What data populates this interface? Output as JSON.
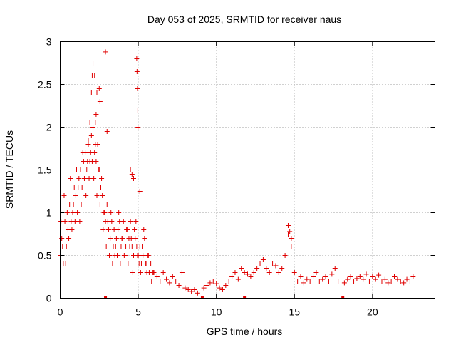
{
  "chart_data": {
    "type": "scatter",
    "title": "Day 053 of 2025, SRMTID for receiver naus",
    "xlabel": "GPS time / hours",
    "ylabel": "SRMTID / TECUs",
    "xlim": [
      0,
      24
    ],
    "ylim": [
      0,
      3
    ],
    "xticks": [
      0,
      5,
      10,
      15,
      20
    ],
    "xtick_labels": [
      "0",
      "5",
      "10",
      "15",
      "20"
    ],
    "yticks": [
      0,
      0.5,
      1,
      1.5,
      2,
      2.5,
      3
    ],
    "ytick_labels": [
      "0",
      "0.5",
      "1",
      "1.5",
      "2",
      "2.5",
      "3"
    ],
    "grid": true,
    "marker": "plus",
    "color": "#e00000",
    "series": [
      {
        "name": "SRMTID",
        "x": [
          0.0,
          0.1,
          0.2,
          0.3,
          0.4,
          0.5,
          0.6,
          0.7,
          0.8,
          0.9,
          1.0,
          1.1,
          1.2,
          1.3,
          1.4,
          1.5,
          1.6,
          1.7,
          1.8,
          1.9,
          2.0,
          2.1,
          2.2,
          2.3,
          2.4,
          2.5,
          2.6,
          2.7,
          2.8,
          2.9,
          3.0,
          3.1,
          3.2,
          3.3,
          3.4,
          3.5,
          3.6,
          3.7,
          3.8,
          3.9,
          4.0,
          4.1,
          4.2,
          4.3,
          4.4,
          4.5,
          4.6,
          4.7,
          4.8,
          4.9,
          5.0,
          5.1,
          5.2,
          5.3,
          5.4,
          5.5,
          5.6,
          5.7,
          5.8,
          5.9,
          6.0,
          6.2,
          6.4,
          6.6,
          6.8,
          7.0,
          7.2,
          7.4,
          7.6,
          7.8,
          8.0,
          8.2,
          8.4,
          8.6,
          8.8,
          9.2,
          9.4,
          9.6,
          9.8,
          10.0,
          10.2,
          10.4,
          10.6,
          10.8,
          11.0,
          11.2,
          11.4,
          11.6,
          11.8,
          12.0,
          12.2,
          12.4,
          12.6,
          12.8,
          13.0,
          13.2,
          13.4,
          13.6,
          13.8,
          14.0,
          14.2,
          14.4,
          14.6,
          14.8,
          15.0,
          15.2,
          15.4,
          15.6,
          15.8,
          16.0,
          16.2,
          16.4,
          16.6,
          16.8,
          17.0,
          17.2,
          17.4,
          17.6,
          17.8,
          18.2,
          18.4,
          18.6,
          18.8,
          19.0,
          19.2,
          19.4,
          19.6,
          19.8,
          20.0,
          20.2,
          20.4,
          20.6,
          20.8,
          21.0,
          21.2,
          21.4,
          21.6,
          21.8,
          22.0,
          22.2,
          22.4,
          22.6,
          0.05,
          0.15,
          0.25,
          0.35,
          0.45,
          0.55,
          0.65,
          0.75,
          0.85,
          0.95,
          1.05,
          1.15,
          1.25,
          1.35,
          1.45,
          1.55,
          1.65,
          1.75,
          1.85,
          1.95,
          2.05,
          2.15,
          2.25,
          2.35,
          2.45,
          2.55,
          2.65,
          2.75,
          2.85,
          2.95,
          3.05,
          3.15,
          3.25,
          3.35,
          3.45,
          3.55,
          3.65,
          3.75,
          3.85,
          3.95,
          4.05,
          4.15,
          4.25,
          4.35,
          4.45,
          4.55,
          4.65,
          4.75,
          4.85,
          4.95,
          5.05,
          5.15,
          5.25,
          5.35,
          5.45,
          5.55,
          5.65,
          5.75,
          5.85,
          5.95,
          2.0,
          2.05,
          2.1,
          2.25,
          2.35,
          2.5,
          2.55,
          4.9,
          4.92,
          4.95,
          4.97,
          4.98,
          14.6,
          14.7,
          14.8,
          2.9,
          1.8,
          1.9,
          2.2,
          2.3,
          3.0,
          4.5,
          4.6,
          4.7,
          5.1
        ],
        "y": [
          0.5,
          0.7,
          0.4,
          0.9,
          0.6,
          0.8,
          1.1,
          0.9,
          1.0,
          1.3,
          1.2,
          1.0,
          1.4,
          1.5,
          1.3,
          1.6,
          1.7,
          1.5,
          1.8,
          1.6,
          1.9,
          2.0,
          1.7,
          1.6,
          1.8,
          1.5,
          1.3,
          1.2,
          1.0,
          0.9,
          1.1,
          0.8,
          0.7,
          0.9,
          0.6,
          0.5,
          0.7,
          0.8,
          0.9,
          0.6,
          0.7,
          0.5,
          0.6,
          0.8,
          0.7,
          0.9,
          0.6,
          0.5,
          0.7,
          0.6,
          0.5,
          0.6,
          0.4,
          0.5,
          0.7,
          0.4,
          0.5,
          0.3,
          0.4,
          0.3,
          0.3,
          0.25,
          0.2,
          0.3,
          0.22,
          0.18,
          0.25,
          0.2,
          0.15,
          0.3,
          0.12,
          0.1,
          0.08,
          0.1,
          0.06,
          0.12,
          0.15,
          0.18,
          0.2,
          0.17,
          0.12,
          0.1,
          0.15,
          0.2,
          0.25,
          0.3,
          0.22,
          0.35,
          0.3,
          0.28,
          0.25,
          0.3,
          0.35,
          0.4,
          0.45,
          0.35,
          0.3,
          0.4,
          0.38,
          0.3,
          0.35,
          0.5,
          0.75,
          0.6,
          0.3,
          0.2,
          0.25,
          0.18,
          0.22,
          0.2,
          0.25,
          0.3,
          0.2,
          0.22,
          0.25,
          0.2,
          0.28,
          0.35,
          0.2,
          0.18,
          0.22,
          0.25,
          0.2,
          0.23,
          0.25,
          0.22,
          0.28,
          0.2,
          0.25,
          0.22,
          0.27,
          0.2,
          0.22,
          0.18,
          0.2,
          0.25,
          0.22,
          0.2,
          0.18,
          0.22,
          0.2,
          0.25,
          0.9,
          0.6,
          1.2,
          0.4,
          1.0,
          0.7,
          1.4,
          0.8,
          1.1,
          0.9,
          1.5,
          1.3,
          0.9,
          1.1,
          1.7,
          1.4,
          1.2,
          1.6,
          1.4,
          1.7,
          1.6,
          1.4,
          1.8,
          1.2,
          1.5,
          1.1,
          1.4,
          0.8,
          1.0,
          0.6,
          0.9,
          0.5,
          1.0,
          0.4,
          0.8,
          0.6,
          0.5,
          1.0,
          0.4,
          0.7,
          0.9,
          0.5,
          0.8,
          0.4,
          0.6,
          0.7,
          0.3,
          0.8,
          0.9,
          0.5,
          0.4,
          0.3,
          0.6,
          0.8,
          0.4,
          0.3,
          0.5,
          0.4,
          0.2,
          0.3,
          2.4,
          2.6,
          2.75,
          2.05,
          2.4,
          2.45,
          2.3,
          2.8,
          2.65,
          2.45,
          2.2,
          2.0,
          0.85,
          0.78,
          0.7,
          2.88,
          1.85,
          2.05,
          2.6,
          2.15,
          1.95,
          1.5,
          1.45,
          1.4,
          1.25
        ]
      }
    ],
    "zero_markers_x": [
      2.9,
      9.1,
      11.8,
      18.1
    ]
  }
}
